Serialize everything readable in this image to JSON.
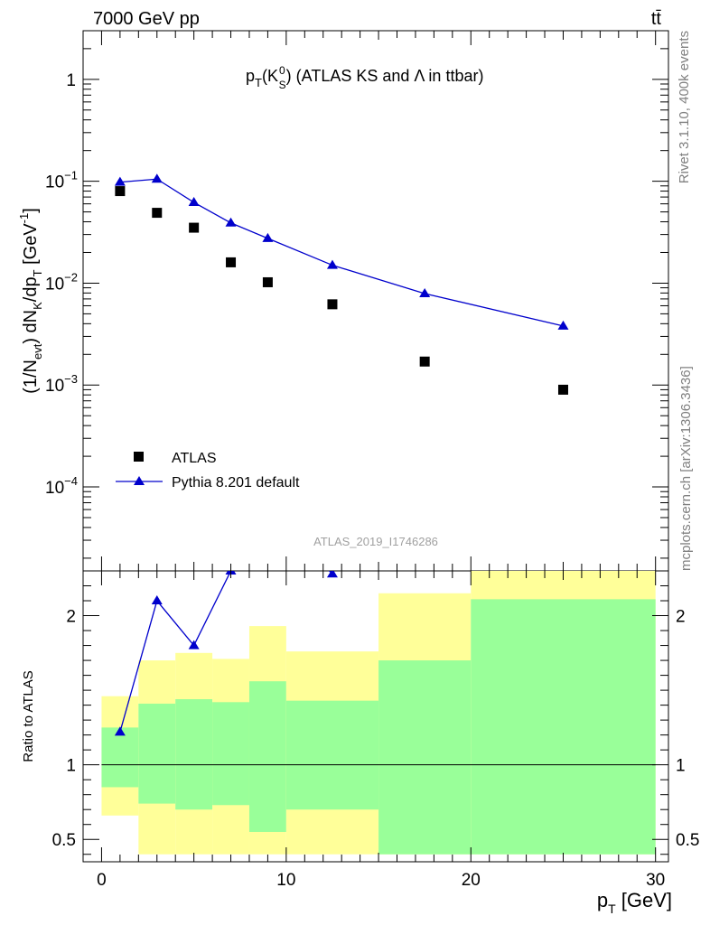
{
  "header": {
    "energy_label": "7000 GeV pp",
    "process_label": "tt̄",
    "subtitle_main": "p",
    "subtitle_sub": "T",
    "subtitle_k": "(K",
    "subtitle_k_sup": "0",
    "subtitle_k_sub": "S",
    "subtitle_rest": ") (ATLAS KS and Λ in ttbar)",
    "watermark": "ATLAS_2019_I1746286",
    "side_rivet": "Rivet 3.1.10,  400k events",
    "side_mcplots": "mcplots.cern.ch [arXiv:1306.3436]"
  },
  "y_axis_label": {
    "p1": "(1/N",
    "p1_sub": "evt",
    "p2": ") dN",
    "p2_sub": "K",
    "p3": "/dp",
    "p3_sub": "T",
    "p4": " [GeV",
    "p4_sup": "-1",
    "p5": "]"
  },
  "ratio_axis_label": "Ratio to ATLAS",
  "x_axis_label": {
    "main": "p",
    "sub": "T",
    "unit": " [GeV]"
  },
  "legend": {
    "atlas": "ATLAS",
    "pythia": "Pythia 8.201 default"
  },
  "colors": {
    "atlas_marker": "#000000",
    "pythia_line": "#0000cc",
    "band_inner": "#99ff99",
    "band_outer": "#ffff99"
  },
  "chart_data": {
    "type": "scatter",
    "x_label": "pT [GeV]",
    "y_label": "(1/Nevt) dNK/dpT [GeV-1]",
    "y_scale": "log",
    "xlim": [
      -1.0,
      30.7
    ],
    "ylim": [
      1.5e-05,
      3.0
    ],
    "y_ticks": [
      {
        "value": 1,
        "label": "1"
      },
      {
        "value": 0.1,
        "label": "10",
        "exp": "−1"
      },
      {
        "value": 0.01,
        "label": "10",
        "exp": "−2"
      },
      {
        "value": 0.001,
        "label": "10",
        "exp": "−3"
      },
      {
        "value": 0.0001,
        "label": "10",
        "exp": "−4"
      }
    ],
    "x_ticks": [
      0,
      10,
      20,
      30
    ],
    "series": [
      {
        "name": "ATLAS",
        "marker": "square",
        "x": [
          1,
          3,
          5,
          7,
          9,
          12.5,
          17.5,
          25
        ],
        "values": [
          0.08,
          0.049,
          0.035,
          0.016,
          0.0102,
          0.0062,
          0.0017,
          0.0009
        ]
      },
      {
        "name": "Pythia 8.201 default",
        "marker": "triangle",
        "x": [
          1,
          3,
          5,
          7,
          9,
          12.5,
          17.5,
          25
        ],
        "values": [
          0.098,
          0.105,
          0.062,
          0.039,
          0.0275,
          0.015,
          0.0079,
          0.0038
        ]
      }
    ],
    "ratio": {
      "ylim": [
        0.35,
        2.3
      ],
      "y_ticks": [
        0.5,
        1,
        2
      ],
      "reference": 1.0,
      "bins": [
        {
          "lo": 0,
          "hi": 2,
          "inner": [
            0.85,
            1.25
          ],
          "outer": [
            0.66,
            1.46
          ]
        },
        {
          "lo": 2,
          "hi": 4,
          "inner": [
            0.74,
            1.41
          ],
          "outer": [
            0.4,
            1.7
          ]
        },
        {
          "lo": 4,
          "hi": 6,
          "inner": [
            0.7,
            1.44
          ],
          "outer": [
            0.4,
            1.75
          ]
        },
        {
          "lo": 6,
          "hi": 8,
          "inner": [
            0.73,
            1.42
          ],
          "outer": [
            0.4,
            1.71
          ]
        },
        {
          "lo": 8,
          "hi": 10,
          "inner": [
            0.55,
            1.56
          ],
          "outer": [
            0.4,
            1.93
          ]
        },
        {
          "lo": 10,
          "hi": 15,
          "inner": [
            0.7,
            1.43
          ],
          "outer": [
            0.4,
            1.76
          ]
        },
        {
          "lo": 15,
          "hi": 20,
          "inner": [
            0.4,
            1.7
          ],
          "outer": [
            0.4,
            2.15
          ]
        },
        {
          "lo": 20,
          "hi": 30,
          "inner": [
            0.4,
            2.11
          ],
          "outer": [
            0.4,
            2.4
          ]
        }
      ],
      "pythia_ratio": {
        "x": [
          1,
          3,
          5,
          7,
          9,
          12.5
        ],
        "values": [
          1.22,
          2.1,
          1.8,
          2.3,
          2.7,
          2.28
        ]
      }
    }
  }
}
